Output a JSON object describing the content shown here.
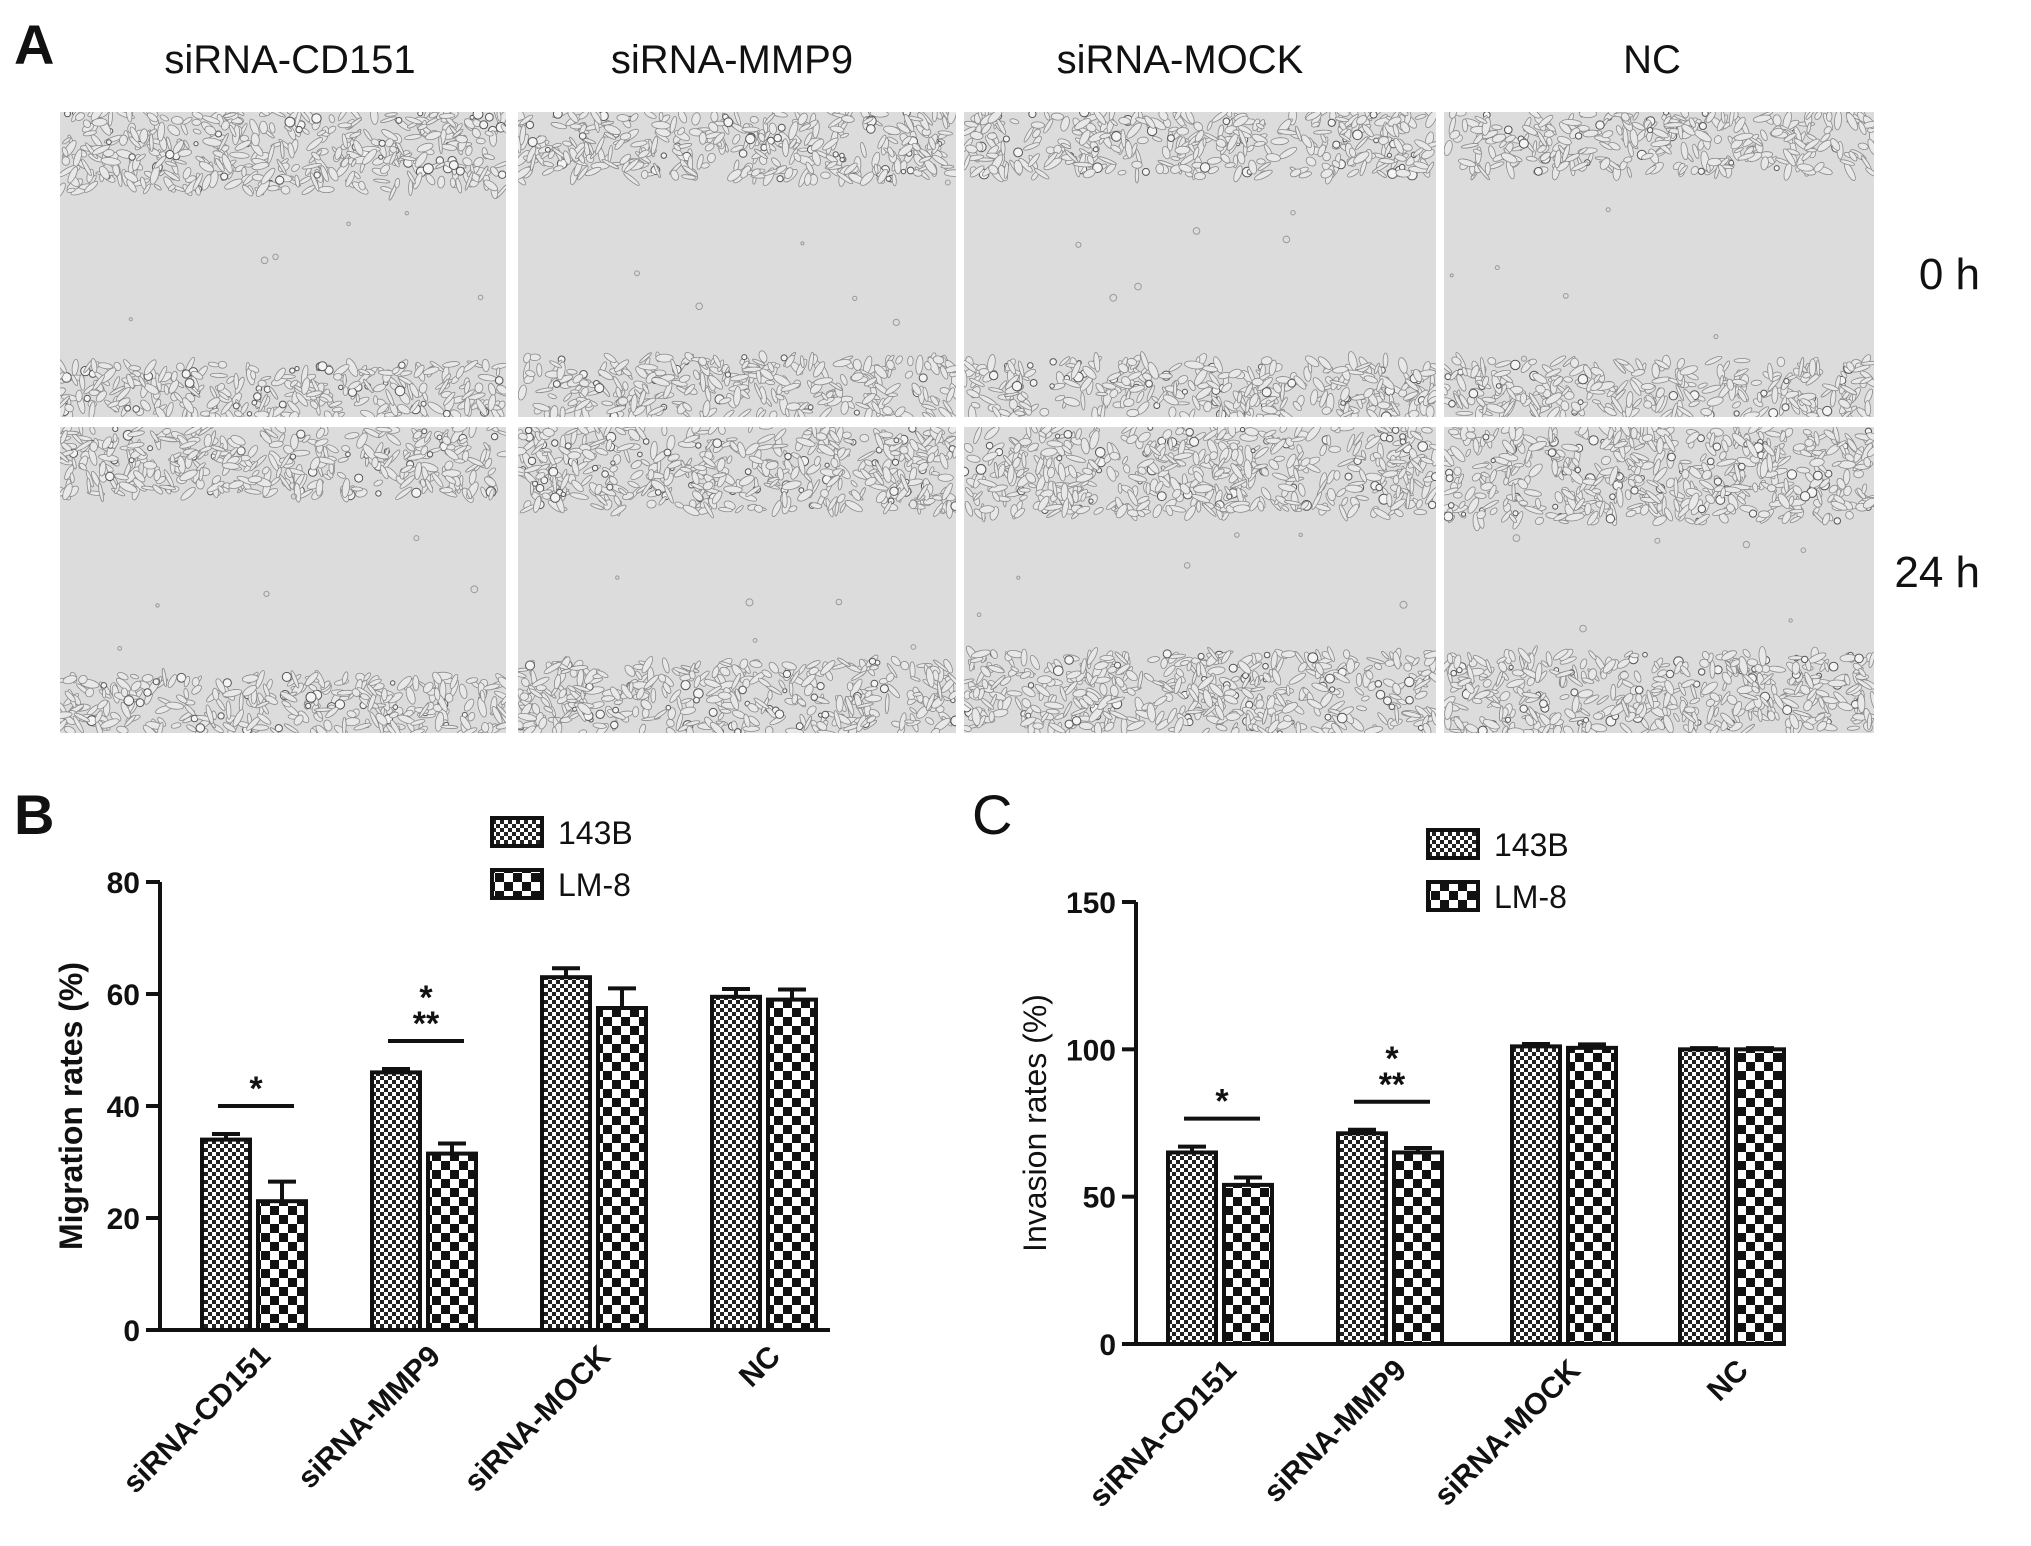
{
  "panelA": {
    "letter": "A",
    "columns": [
      "siRNA-CD151",
      "siRNA-MMP9",
      "siRNA-MOCK",
      "NC"
    ],
    "rows": [
      "0 h",
      "24 h"
    ]
  },
  "panelB": {
    "letter": "B",
    "legend": [
      "143B",
      "LM-8"
    ]
  },
  "panelC": {
    "letter": "C",
    "legend": [
      "143B",
      "LM-8"
    ]
  },
  "chart_data": [
    {
      "type": "bar",
      "panel": "B",
      "title": "",
      "xlabel": "",
      "ylabel": "Migration rates (%)",
      "ylim": [
        0,
        80
      ],
      "yticks": [
        "0",
        "20",
        "40",
        "60",
        "80"
      ],
      "categories": [
        "siRNA-CD151",
        "siRNA-MMP9",
        "siRNA-MOCK",
        "NC"
      ],
      "legend_position": "top-center",
      "series": [
        {
          "name": "143B",
          "values": [
            34,
            46,
            63,
            59.5
          ],
          "errors": [
            1.0,
            0.6,
            1.6,
            1.4
          ],
          "pattern": "fine-check"
        },
        {
          "name": "LM-8",
          "values": [
            23,
            31.5,
            57.5,
            59
          ],
          "errors": [
            3.5,
            1.8,
            3.5,
            1.8
          ],
          "pattern": "coarse-check"
        }
      ],
      "significance": [
        {
          "category": "siRNA-CD151",
          "labels": [
            "*"
          ]
        },
        {
          "category": "siRNA-MMP9",
          "labels": [
            "*",
            "**"
          ]
        }
      ]
    },
    {
      "type": "bar",
      "panel": "C",
      "title": "",
      "xlabel": "",
      "ylabel": "Invasion rates (%)",
      "ylim": [
        0,
        150
      ],
      "yticks": [
        "0",
        "50",
        "100",
        "150"
      ],
      "categories": [
        "siRNA-CD151",
        "siRNA-MMP9",
        "siRNA-MOCK",
        "NC"
      ],
      "legend_position": "top-center",
      "series": [
        {
          "name": "143B",
          "values": [
            65,
            71.5,
            101,
            100
          ],
          "errors": [
            2.0,
            1.2,
            0.8,
            0.4
          ],
          "pattern": "fine-check"
        },
        {
          "name": "LM-8",
          "values": [
            54,
            65,
            100.5,
            100
          ],
          "errors": [
            2.5,
            1.5,
            1.2,
            0.4
          ],
          "pattern": "coarse-check"
        }
      ],
      "significance": [
        {
          "category": "siRNA-CD151",
          "labels": [
            "*"
          ]
        },
        {
          "category": "siRNA-MMP9",
          "labels": [
            "*",
            "**"
          ]
        }
      ]
    }
  ]
}
